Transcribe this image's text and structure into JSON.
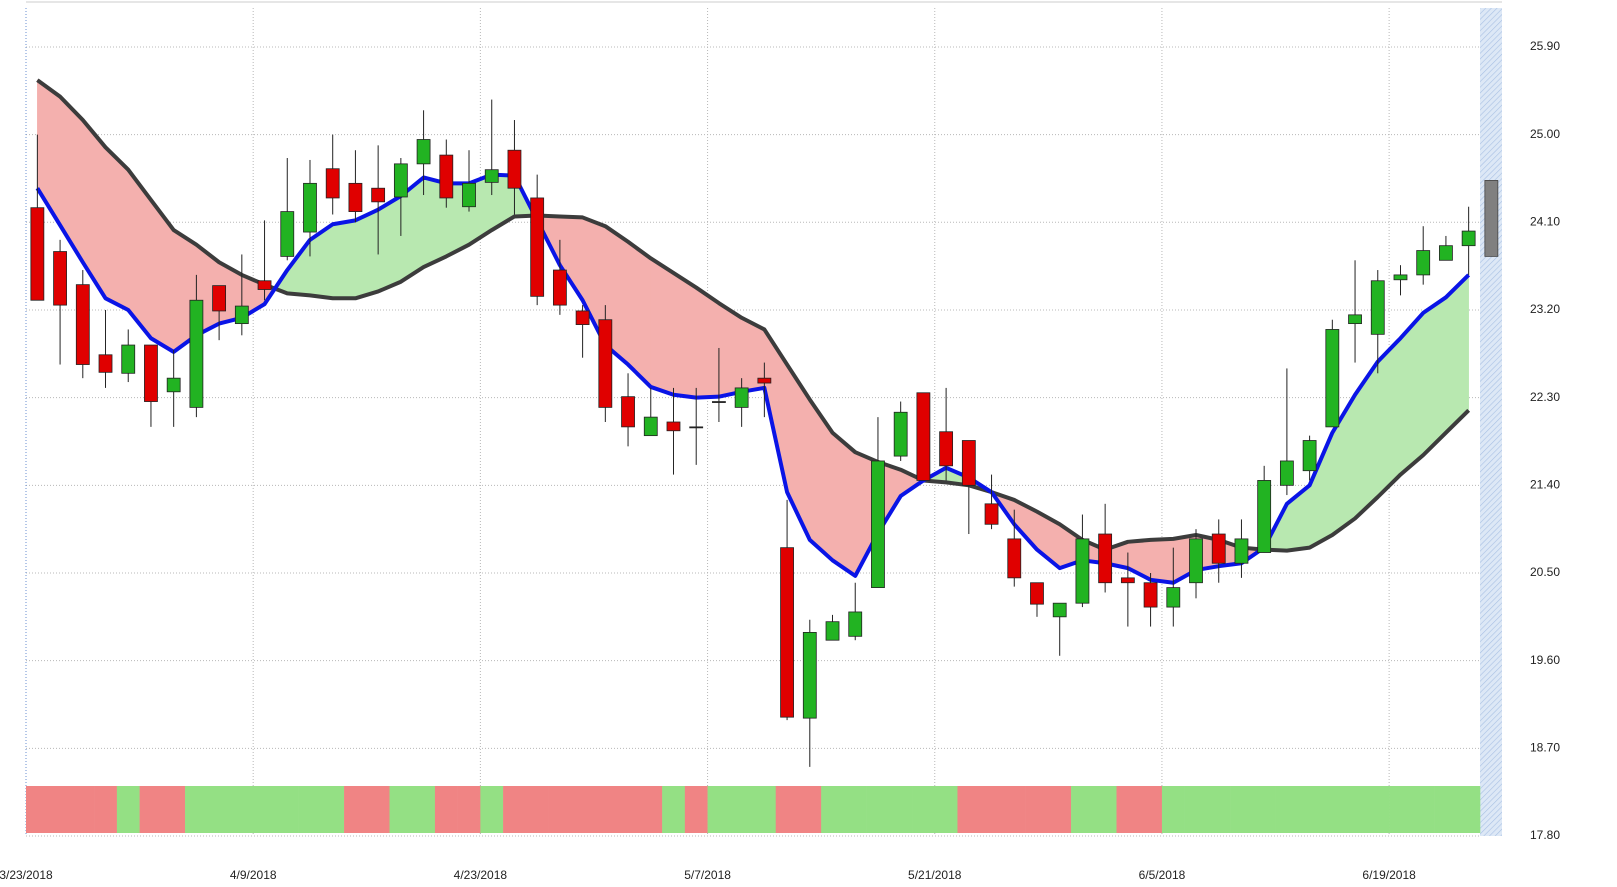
{
  "chart_data": {
    "type": "candlestick",
    "categories": [
      "3/23/2018",
      null,
      null,
      null,
      null,
      null,
      null,
      null,
      null,
      null,
      "4/9/2018",
      null,
      null,
      null,
      null,
      null,
      null,
      null,
      null,
      null,
      "4/23/2018",
      null,
      null,
      null,
      null,
      null,
      null,
      null,
      null,
      null,
      "5/7/2018",
      null,
      null,
      null,
      null,
      null,
      null,
      null,
      null,
      null,
      "5/21/2018",
      null,
      null,
      null,
      null,
      null,
      null,
      null,
      null,
      null,
      "6/5/2018",
      null,
      null,
      null,
      null,
      null,
      null,
      null,
      null,
      null,
      "6/19/2018",
      null,
      null,
      null
    ],
    "open": [
      24.25,
      23.8,
      23.46,
      22.74,
      22.55,
      22.84,
      22.36,
      22.2,
      23.45,
      23.06,
      23.5,
      23.75,
      24.0,
      24.65,
      24.5,
      24.45,
      24.36,
      24.7,
      24.79,
      24.26,
      24.51,
      24.84,
      24.35,
      23.61,
      23.19,
      23.1,
      22.31,
      21.91,
      22.05,
      22.0,
      22.26,
      22.2,
      22.5,
      20.76,
      19.01,
      19.81,
      19.85,
      20.35,
      21.7,
      22.35,
      21.95,
      21.86,
      21.21,
      20.85,
      20.4,
      20.05,
      20.19,
      20.9,
      20.45,
      20.4,
      20.15,
      20.4,
      20.9,
      20.6,
      20.71,
      21.4,
      21.55,
      22.0,
      23.06,
      22.95,
      23.51,
      23.56,
      23.71,
      23.86
    ],
    "high": [
      25.0,
      23.92,
      23.61,
      23.2,
      23.0,
      22.84,
      22.79,
      23.56,
      23.45,
      23.77,
      24.12,
      24.76,
      24.74,
      25.0,
      24.84,
      24.89,
      24.76,
      25.25,
      24.95,
      24.84,
      25.36,
      25.15,
      24.59,
      23.92,
      23.25,
      23.25,
      22.55,
      22.4,
      22.4,
      22.4,
      22.81,
      22.5,
      22.66,
      21.25,
      20.02,
      20.07,
      20.4,
      22.1,
      22.26,
      22.35,
      22.4,
      21.86,
      21.51,
      21.15,
      20.4,
      20.19,
      21.1,
      21.21,
      20.71,
      20.5,
      20.76,
      20.95,
      21.05,
      21.05,
      21.6,
      22.6,
      21.91,
      23.1,
      23.71,
      23.61,
      23.66,
      24.06,
      23.96,
      24.26
    ],
    "low": [
      23.3,
      22.64,
      22.5,
      22.4,
      22.46,
      22.0,
      22.0,
      22.1,
      22.89,
      22.94,
      23.3,
      23.71,
      23.75,
      24.18,
      24.1,
      23.77,
      23.96,
      24.38,
      24.25,
      24.21,
      24.38,
      24.18,
      23.25,
      23.15,
      22.71,
      22.05,
      21.8,
      21.91,
      21.51,
      21.61,
      22.05,
      22.0,
      22.1,
      18.99,
      18.51,
      19.81,
      19.81,
      20.35,
      21.65,
      21.45,
      21.45,
      20.9,
      20.95,
      20.36,
      20.05,
      19.65,
      20.15,
      20.3,
      19.95,
      19.95,
      19.95,
      20.24,
      20.4,
      20.45,
      20.71,
      21.3,
      21.45,
      22.0,
      22.66,
      22.55,
      23.35,
      23.46,
      23.71,
      23.56
    ],
    "close": [
      23.3,
      23.25,
      22.64,
      22.56,
      22.84,
      22.26,
      22.5,
      23.3,
      23.19,
      23.24,
      23.41,
      24.21,
      24.5,
      24.35,
      24.21,
      24.31,
      24.7,
      24.95,
      24.35,
      24.5,
      24.64,
      24.45,
      23.34,
      23.25,
      23.05,
      22.2,
      22.0,
      22.1,
      21.96,
      22.0,
      22.26,
      22.4,
      22.45,
      19.02,
      19.89,
      20.0,
      20.1,
      21.65,
      22.15,
      21.45,
      21.6,
      21.4,
      21.0,
      20.45,
      20.18,
      20.19,
      20.85,
      20.4,
      20.4,
      20.15,
      20.35,
      20.85,
      20.6,
      20.85,
      21.45,
      21.65,
      21.86,
      23.0,
      23.15,
      23.5,
      23.56,
      23.81,
      23.86,
      24.01
    ],
    "up_color": "#22b322",
    "down_color": "#e00000",
    "flat_color": "#222222",
    "ma_fast": {
      "color": "#0a14e6",
      "values": [
        24.45,
        24.07,
        23.69,
        23.32,
        23.2,
        22.91,
        22.77,
        22.94,
        23.06,
        23.12,
        23.26,
        23.61,
        23.92,
        24.08,
        24.12,
        24.23,
        24.37,
        24.56,
        24.5,
        24.5,
        24.59,
        24.58,
        24.12,
        23.66,
        23.3,
        22.84,
        22.64,
        22.41,
        22.33,
        22.3,
        22.31,
        22.36,
        22.4,
        21.33,
        20.84,
        20.63,
        20.47,
        20.91,
        21.29,
        21.45,
        21.58,
        21.48,
        21.33,
        21.0,
        20.74,
        20.55,
        20.63,
        20.6,
        20.55,
        20.43,
        20.4,
        20.53,
        20.57,
        20.6,
        20.76,
        21.21,
        21.4,
        21.94,
        22.33,
        22.67,
        22.91,
        23.17,
        23.33,
        23.56
      ]
    },
    "ma_slow": {
      "color": "#3c3c3c",
      "values": [
        25.56,
        25.39,
        25.15,
        24.87,
        24.64,
        24.33,
        24.02,
        23.87,
        23.69,
        23.56,
        23.46,
        23.37,
        23.35,
        23.32,
        23.32,
        23.39,
        23.49,
        23.64,
        23.75,
        23.87,
        24.02,
        24.16,
        24.17,
        24.16,
        24.15,
        24.06,
        23.9,
        23.73,
        23.58,
        23.43,
        23.27,
        23.12,
        23.0,
        22.64,
        22.28,
        21.94,
        21.74,
        21.64,
        21.56,
        21.45,
        21.43,
        21.4,
        21.33,
        21.25,
        21.13,
        21.0,
        20.84,
        20.74,
        20.82,
        20.84,
        20.85,
        20.89,
        20.84,
        20.76,
        20.74,
        20.73,
        20.76,
        20.89,
        21.06,
        21.28,
        21.51,
        21.71,
        21.94,
        22.17
      ]
    },
    "fill_up_color": "#b8e8b0",
    "fill_down_color": "#f4b0ae",
    "signal_band": [
      "#f08484",
      "#f08484",
      "#f08484",
      "#f08484",
      "#94e084",
      "#f08484",
      "#f08484",
      "#94e084",
      "#94e084",
      "#94e084",
      "#94e084",
      "#94e084",
      "#94e084",
      "#94e084",
      "#f08484",
      "#f08484",
      "#94e084",
      "#94e084",
      "#f08484",
      "#f08484",
      "#94e084",
      "#f08484",
      "#f08484",
      "#f08484",
      "#f08484",
      "#f08484",
      "#f08484",
      "#f08484",
      "#94e084",
      "#f08484",
      "#94e084",
      "#94e084",
      "#94e084",
      "#f08484",
      "#f08484",
      "#94e084",
      "#94e084",
      "#94e084",
      "#94e084",
      "#94e084",
      "#94e084",
      "#f08484",
      "#f08484",
      "#f08484",
      "#f08484",
      "#f08484",
      "#94e084",
      "#94e084",
      "#f08484",
      "#f08484",
      "#94e084",
      "#94e084",
      "#94e084",
      "#94e084",
      "#94e084",
      "#94e084",
      "#94e084",
      "#94e084",
      "#94e084",
      "#94e084",
      "#94e084",
      "#94e084",
      "#94e084",
      "#94e084"
    ],
    "projection": {
      "open": 24.53,
      "close": 23.75,
      "color": "#808080"
    },
    "ylim": [
      17.8,
      26.3
    ],
    "yticks": [
      {
        "value": 17.8,
        "label": "17.80"
      },
      {
        "value": 18.7,
        "label": "18.70"
      },
      {
        "value": 19.6,
        "label": "19.60"
      },
      {
        "value": 20.5,
        "label": "20.50"
      },
      {
        "value": 21.4,
        "label": "21.40"
      },
      {
        "value": 22.3,
        "label": "22.30"
      },
      {
        "value": 23.2,
        "label": "23.20"
      },
      {
        "value": 24.1,
        "label": "24.10"
      },
      {
        "value": 25,
        "label": "25.00"
      },
      {
        "value": 25.9,
        "label": "25.90"
      }
    ],
    "grid": true
  }
}
